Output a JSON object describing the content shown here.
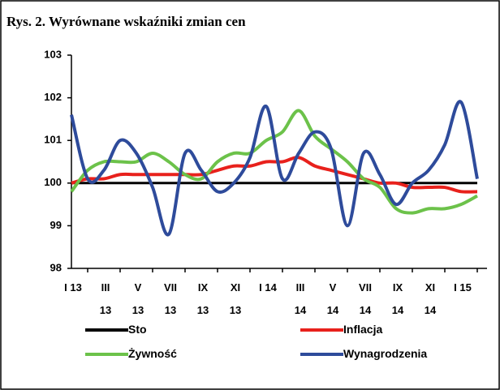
{
  "chart_data": {
    "type": "line",
    "title": "Rys. 2. Wyrównane wskaźniki zmian cen",
    "categories": [
      "I 13",
      null,
      "III 13",
      null,
      "V 13",
      null,
      "VII 13",
      null,
      "IX 13",
      null,
      "XI 13",
      null,
      "I 14",
      null,
      "III 14",
      null,
      "V 14",
      null,
      "VII 14",
      null,
      "IX 14",
      null,
      "XI 14",
      null,
      "I 15",
      null
    ],
    "ylim": [
      98,
      103
    ],
    "yticks": [
      98,
      99,
      100,
      101,
      102,
      103
    ],
    "series": [
      {
        "name": "Sto",
        "color": "#000000",
        "values": [
          100,
          100,
          100,
          100,
          100,
          100,
          100,
          100,
          100,
          100,
          100,
          100,
          100,
          100,
          100,
          100,
          100,
          100,
          100,
          100,
          100,
          100,
          100,
          100,
          100,
          100
        ]
      },
      {
        "name": "Inflacja",
        "color": "#e8211c",
        "values": [
          100.0,
          100.1,
          100.1,
          100.2,
          100.2,
          100.2,
          100.2,
          100.2,
          100.2,
          100.3,
          100.4,
          100.4,
          100.5,
          100.5,
          100.6,
          100.4,
          100.3,
          100.2,
          100.1,
          100.0,
          100.0,
          99.9,
          99.9,
          99.9,
          99.8,
          99.8
        ]
      },
      {
        "name": "Żywność",
        "color": "#6cc24a",
        "values": [
          99.8,
          100.3,
          100.5,
          100.5,
          100.5,
          100.7,
          100.5,
          100.2,
          100.1,
          100.5,
          100.7,
          100.7,
          101.0,
          101.2,
          101.7,
          101.1,
          100.8,
          100.5,
          100.1,
          99.9,
          99.4,
          99.3,
          99.4,
          99.4,
          99.5,
          99.7
        ]
      },
      {
        "name": "Wynagrodzenia",
        "color": "#2e4b9b",
        "values": [
          101.6,
          100.1,
          100.3,
          101.0,
          100.7,
          99.9,
          98.8,
          100.7,
          100.3,
          99.8,
          100.0,
          100.6,
          101.8,
          100.1,
          100.7,
          101.2,
          100.8,
          99.0,
          100.7,
          100.2,
          99.5,
          100.0,
          100.3,
          100.9,
          101.9,
          100.1
        ]
      }
    ]
  }
}
